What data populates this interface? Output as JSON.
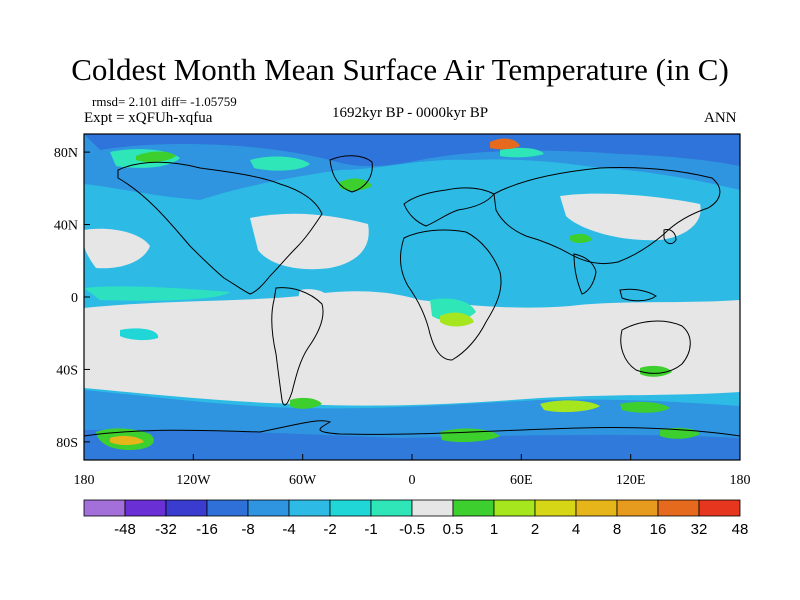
{
  "title": "Coldest Month Mean Surface Air Temperature (in C)",
  "stats": "rmsd= 2.101 diff= -1.05759",
  "expt": "Expt = xQFUh-xqfua",
  "period": "1692kyr BP - 0000kyr BP",
  "season": "ANN",
  "lat_labels": [
    "80N",
    "40N",
    "0",
    "40S",
    "80S"
  ],
  "lat_values": [
    80,
    40,
    0,
    -40,
    -80
  ],
  "lon_labels": [
    "180",
    "120W",
    "60W",
    "0",
    "60E",
    "120E",
    "180"
  ],
  "lon_values": [
    -180,
    -120,
    -60,
    0,
    60,
    120,
    180
  ],
  "colorbar": {
    "labels": [
      "-48",
      "-32",
      "-16",
      "-8",
      "-4",
      "-2",
      "-1",
      "-0.5",
      "0.5",
      "1",
      "2",
      "4",
      "8",
      "16",
      "32",
      "48"
    ],
    "colors": [
      "#a36fd8",
      "#6b2fd6",
      "#3a3ccf",
      "#2f6fd8",
      "#2f95e0",
      "#2dbbe6",
      "#21d6d6",
      "#2ee6b8",
      "#e6e6e6",
      "#3dcf2e",
      "#a6e61e",
      "#d6d616",
      "#e6b51a",
      "#e69a1e",
      "#e66a1e",
      "#e6361e"
    ]
  },
  "colors": {
    "background_field": "#2dbbe6",
    "neutral": "#e6e6e6",
    "coastline": "#000000"
  }
}
